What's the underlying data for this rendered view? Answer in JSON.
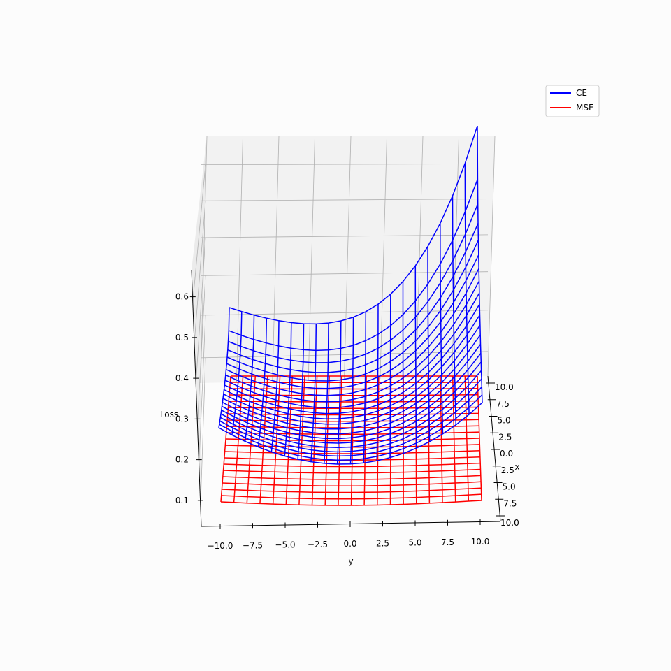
{
  "chart_data": {
    "type": "wireframe-3d",
    "xlabel": "x",
    "ylabel": "y",
    "zlabel": "Loss",
    "x_ticks": [
      "10.0",
      "7.5",
      "5.0",
      "2.5",
      "0.0",
      "2.5",
      "5.0",
      "7.5",
      "10.0"
    ],
    "y_ticks": [
      "−10.0",
      "−7.5",
      "−5.0",
      "−2.5",
      "0.0",
      "2.5",
      "5.0",
      "7.5",
      "10.0"
    ],
    "z_ticks": [
      "0.1",
      "0.2",
      "0.3",
      "0.4",
      "0.5",
      "0.6"
    ],
    "xlim": [
      -10,
      10
    ],
    "ylim": [
      -10,
      10
    ],
    "zlim": [
      0.05,
      0.68
    ],
    "legend": {
      "position": "top-right"
    },
    "series": [
      {
        "name": "CE",
        "color": "#0000ff"
      },
      {
        "name": "MSE",
        "color": "#ff0000"
      }
    ]
  }
}
